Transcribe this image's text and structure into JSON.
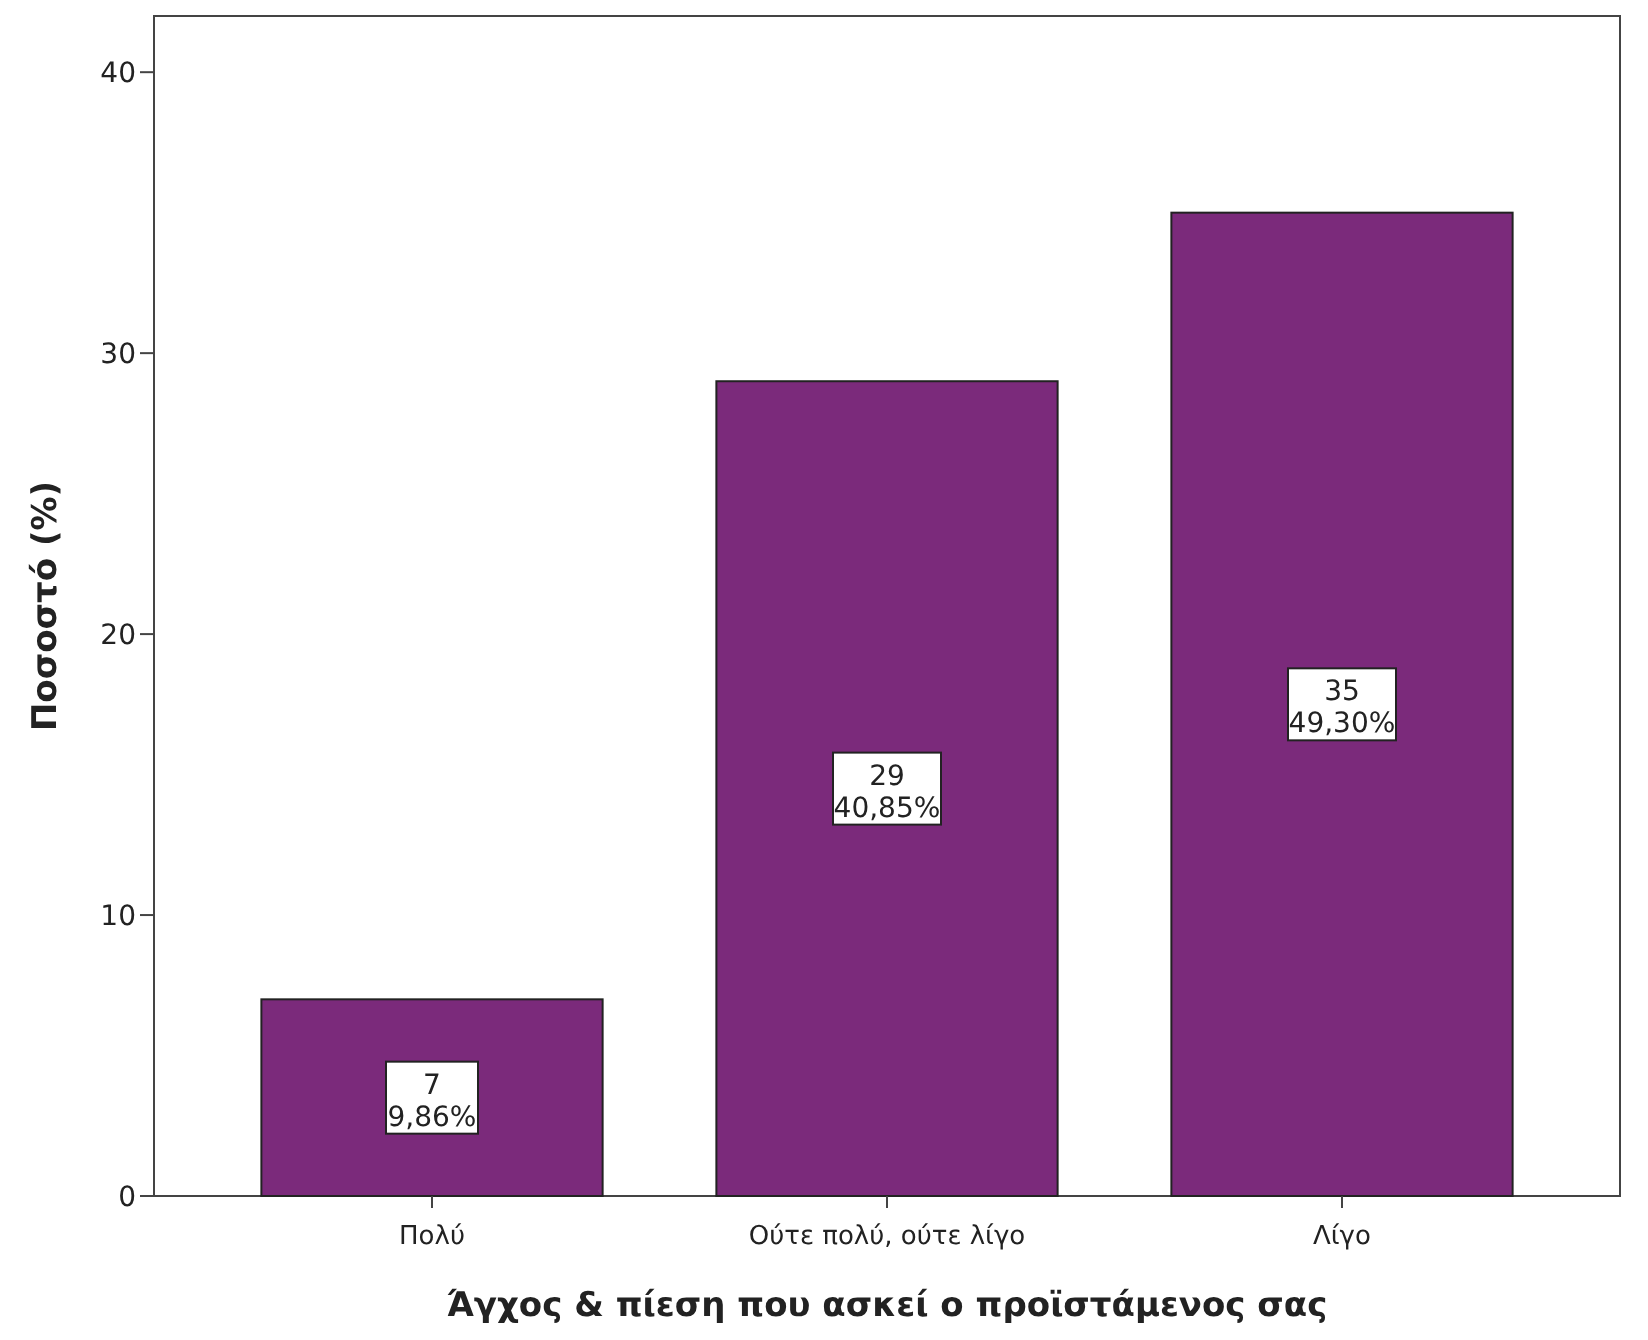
{
  "chart_data": {
    "type": "bar",
    "xlabel": "Άγχος & πίεση που ασκεί ο προϊστάμενος σας",
    "ylabel": "Ποσοστό (%)",
    "categories": [
      "Πολύ",
      "Ούτε πολύ, ούτε λίγο",
      "Λίγο"
    ],
    "values": [
      7,
      29,
      35
    ],
    "color": "#7b2a7b",
    "value_labels": [
      "7\n9,86%",
      "29\n40,85%",
      "35\n49,30%"
    ],
    "ylim": [
      0,
      42
    ],
    "yticks": [
      0,
      10,
      20,
      30,
      40
    ],
    "grid": false
  }
}
